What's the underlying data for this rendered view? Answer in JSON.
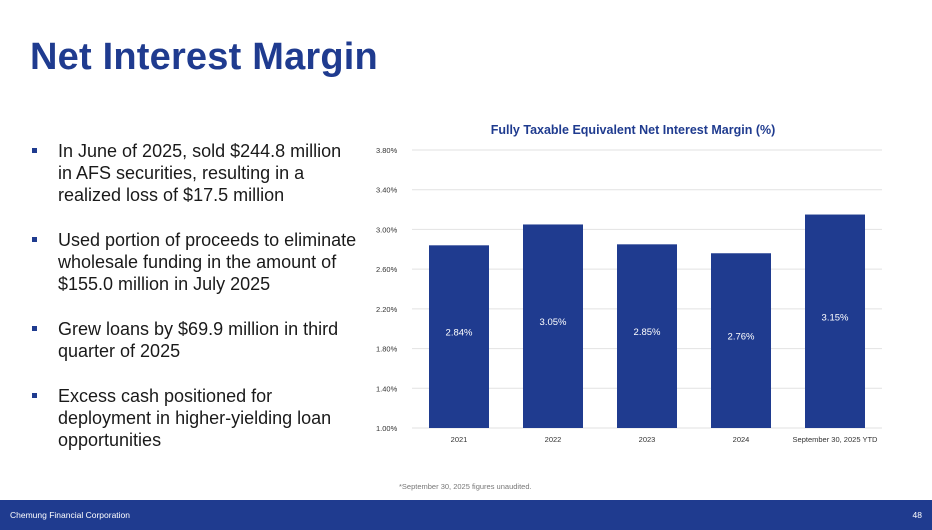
{
  "slide": {
    "title": "Net Interest Margin",
    "bullets": [
      "In June of 2025, sold $244.8 million in AFS securities, resulting in a realized loss of $17.5 million",
      "Used portion of proceeds to eliminate wholesale funding in the amount of $155.0 million in July 2025",
      "Grew loans by $69.9 million in third quarter of 2025",
      "Excess cash positioned for deployment in higher-yielding loan opportunities"
    ],
    "footnote": "*September 30, 2025 figures unaudited.",
    "footer": {
      "company": "Chemung Financial Corporation",
      "page": "48"
    }
  },
  "chart_data": {
    "type": "bar",
    "title": "Fully Taxable Equivalent Net Interest Margin (%)",
    "categories": [
      "2021",
      "2022",
      "2023",
      "2024",
      "September 30, 2025 YTD"
    ],
    "values": [
      2.84,
      3.05,
      2.85,
      2.76,
      3.15
    ],
    "value_labels": [
      "2.84%",
      "3.05%",
      "2.85%",
      "2.76%",
      "3.15%"
    ],
    "yticks": [
      1.0,
      1.4,
      1.8,
      2.2,
      2.6,
      3.0,
      3.4,
      3.8
    ],
    "ytick_labels": [
      "1.00%",
      "1.40%",
      "1.80%",
      "2.20%",
      "2.60%",
      "3.00%",
      "3.40%",
      "3.80%"
    ],
    "ylim": [
      1.0,
      3.8
    ],
    "grid": true,
    "bar_color": "#1f3b8f",
    "label_color": "#ffffff",
    "grid_color": "#e2e2e2"
  }
}
